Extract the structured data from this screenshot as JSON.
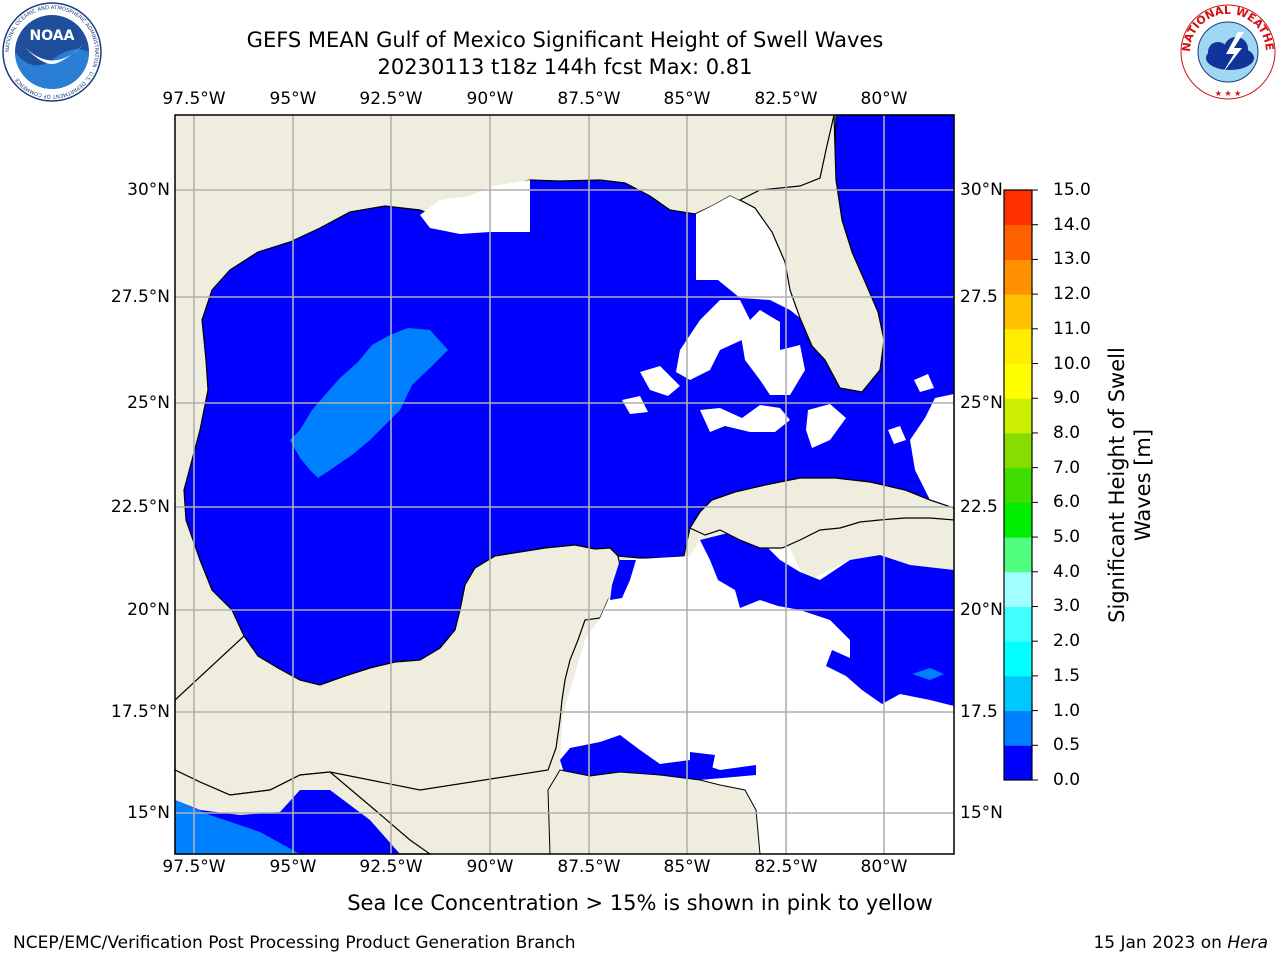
{
  "title_line1": "GEFS MEAN Gulf of Mexico Significant Height of Swell Waves",
  "title_line2": "20230113 t18z 144h fcst   Max: 0.81",
  "map": {
    "lon_labels": [
      "97.5°W",
      "95°W",
      "92.5°W",
      "90°W",
      "87.5°W",
      "85°W",
      "82.5°W",
      "80°W"
    ],
    "lat_labels_left": [
      "30°N",
      "27.5°N",
      "25°N",
      "22.5°N",
      "20°N",
      "17.5°N",
      "15°N"
    ],
    "lat_labels_right": [
      "30°N",
      "27.5",
      "25°N",
      "22.5",
      "20°N",
      "17.5",
      "15°N"
    ],
    "land_color": "#efedde",
    "ocean_color": "#0000ff",
    "no_data_color": "#ffffff",
    "grid_color": "#b0b0b0"
  },
  "colorbar": {
    "title": "Significant Height of Swell Waves [m]",
    "tick_labels": [
      "0.0",
      "0.5",
      "1.0",
      "1.5",
      "2.0",
      "3.0",
      "4.0",
      "5.0",
      "6.0",
      "7.0",
      "8.0",
      "9.0",
      "10.0",
      "11.0",
      "12.0",
      "13.0",
      "14.0",
      "15.0"
    ],
    "colors": [
      "#0000ff",
      "#0080ff",
      "#00c8ff",
      "#00ffff",
      "#40ffff",
      "#a0ffff",
      "#50ff80",
      "#00ee00",
      "#40dd00",
      "#88dd00",
      "#ccee00",
      "#ffff00",
      "#ffee00",
      "#ffc000",
      "#ff9000",
      "#ff6000",
      "#ff3000",
      "#ff0000"
    ]
  },
  "caption": "Sea Ice Concentration > 15% is shown in pink to yellow",
  "footer_left": "NCEP/EMC/Verification Post Processing Product Generation Branch",
  "footer_date": "15 Jan 2023 on ",
  "footer_host": "Hera",
  "logos": {
    "noaa_text": "NOAA",
    "noaa_ring_text": "NATIONAL OCEANIC AND ATMOSPHERIC ADMINISTRATION · U.S. DEPARTMENT OF COMMERCE ·",
    "nws_ring_text": "NATIONAL WEATHER SERVICE"
  }
}
